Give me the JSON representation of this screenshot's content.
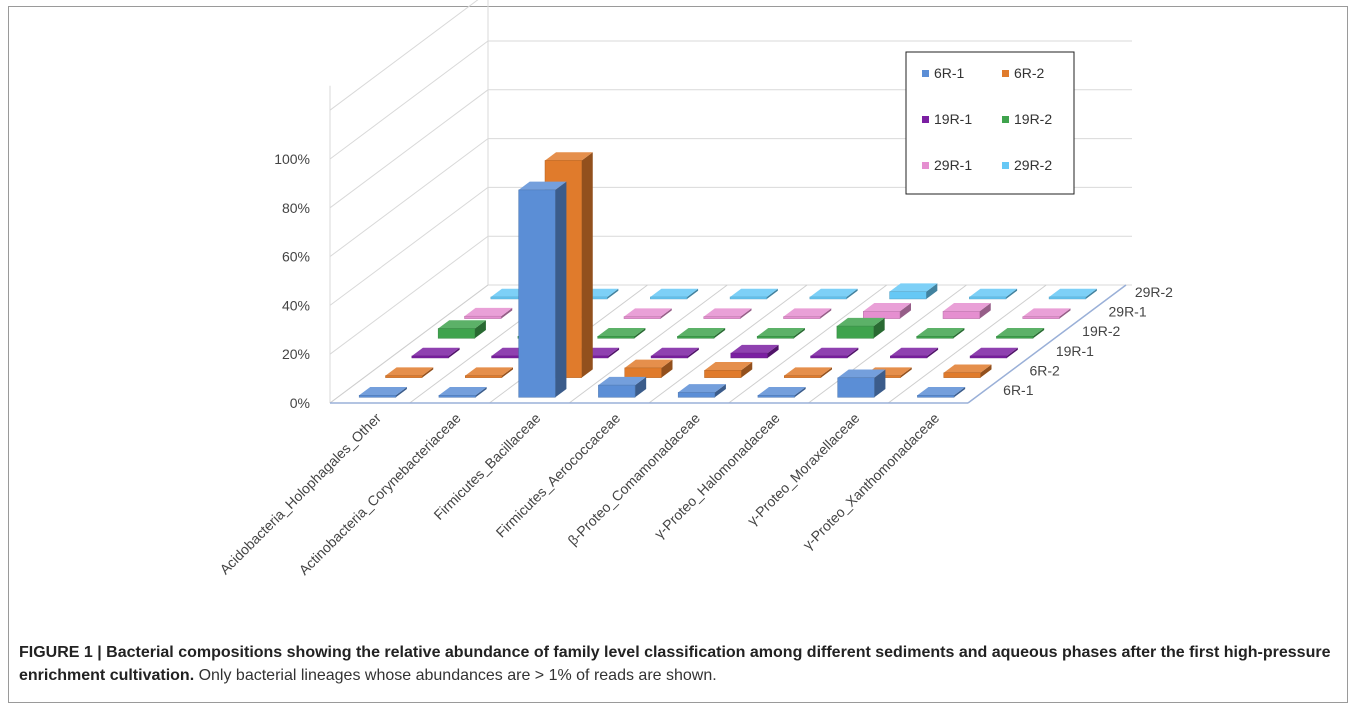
{
  "chart_data": {
    "type": "bar",
    "title": "",
    "ylabel": "",
    "xlabel": "",
    "ylim": [
      0,
      100
    ],
    "y_ticks": [
      "0%",
      "20%",
      "40%",
      "60%",
      "80%",
      "100%"
    ],
    "categories": [
      "Acidobacteria_Holophagales_Other",
      "Actinobacteria_Corynebacteriaceae",
      "Firmicutes_Bacillaceae",
      "Firmicutes_Aerococcaceae",
      "β-Proteo_Comamonadaceae",
      "γ-Proteo_Halomonadaceae",
      "γ-Proteo_Moraxellaceae",
      "γ-Proteo_Xanthomonadaceae"
    ],
    "depth_labels": [
      "6R-1",
      "6R-2",
      "19R-1",
      "19R-2",
      "29R-1",
      "29R-2"
    ],
    "series": [
      {
        "name": "6R-1",
        "color": "#5b8ed6",
        "values": [
          0.5,
          0.5,
          85,
          5,
          2,
          0.5,
          8,
          0.5
        ]
      },
      {
        "name": "6R-2",
        "color": "#e07b2c",
        "values": [
          0.5,
          0.5,
          89,
          4,
          3,
          0.5,
          0.5,
          2
        ]
      },
      {
        "name": "19R-1",
        "color": "#7b1fa2",
        "values": [
          0.5,
          0.5,
          0.5,
          0.5,
          2,
          0.5,
          0.5,
          0.5
        ]
      },
      {
        "name": "19R-2",
        "color": "#3fa34d",
        "values": [
          4,
          0.5,
          0.5,
          0.5,
          0.5,
          5,
          0.5,
          0.5
        ]
      },
      {
        "name": "29R-1",
        "color": "#e58fd0",
        "values": [
          1,
          0.5,
          0.5,
          0.5,
          0.5,
          3,
          3,
          0.5
        ]
      },
      {
        "name": "29R-2",
        "color": "#66c8f5",
        "values": [
          0.5,
          0.5,
          0.5,
          0.5,
          0.5,
          3,
          0.5,
          0.5
        ]
      }
    ],
    "legend_position": "top-right",
    "grid": true
  },
  "legend": [
    {
      "label": "6R-1",
      "color": "#5b8ed6"
    },
    {
      "label": "6R-2",
      "color": "#e07b2c"
    },
    {
      "label": "19R-1",
      "color": "#7b1fa2"
    },
    {
      "label": "19R-2",
      "color": "#3fa34d"
    },
    {
      "label": "29R-1",
      "color": "#e58fd0"
    },
    {
      "label": "29R-2",
      "color": "#66c8f5"
    }
  ],
  "caption": {
    "bold": "FIGURE 1 | Bacterial compositions showing the relative abundance of family level classification among different sediments and aqueous phases after the first high-pressure enrichment cultivation.",
    "normal": " Only bacterial lineages whose abundances are > 1% of reads are shown."
  }
}
